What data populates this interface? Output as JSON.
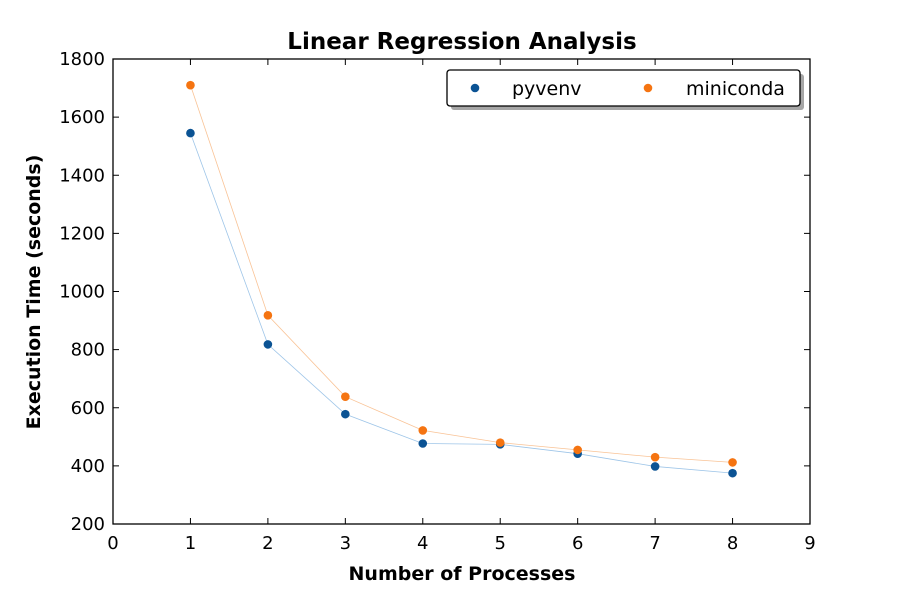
{
  "chart_data": {
    "type": "scatter",
    "title": "Linear Regression Analysis",
    "xlabel": "Number of Processes",
    "ylabel": "Execution Time (seconds)",
    "xlim": [
      0,
      9
    ],
    "ylim": [
      200,
      1800
    ],
    "xticks": [
      "0",
      "1",
      "2",
      "3",
      "4",
      "5",
      "6",
      "7",
      "8",
      "9"
    ],
    "yticks": [
      "200",
      "400",
      "600",
      "800",
      "1000",
      "1200",
      "1400",
      "1600",
      "1800"
    ],
    "grid": false,
    "legend_position": "top-right",
    "x": [
      1,
      2,
      3,
      4,
      5,
      6,
      7,
      8
    ],
    "series": [
      {
        "name": "pyvenv",
        "color": "#0b5394",
        "line_color": "#9ec5e8",
        "values": [
          1545,
          818,
          578,
          477,
          474,
          442,
          398,
          375
        ]
      },
      {
        "name": "miniconda",
        "color": "#f57411",
        "line_color": "#f9c396",
        "values": [
          1710,
          918,
          638,
          522,
          480,
          455,
          430,
          412
        ]
      }
    ]
  }
}
